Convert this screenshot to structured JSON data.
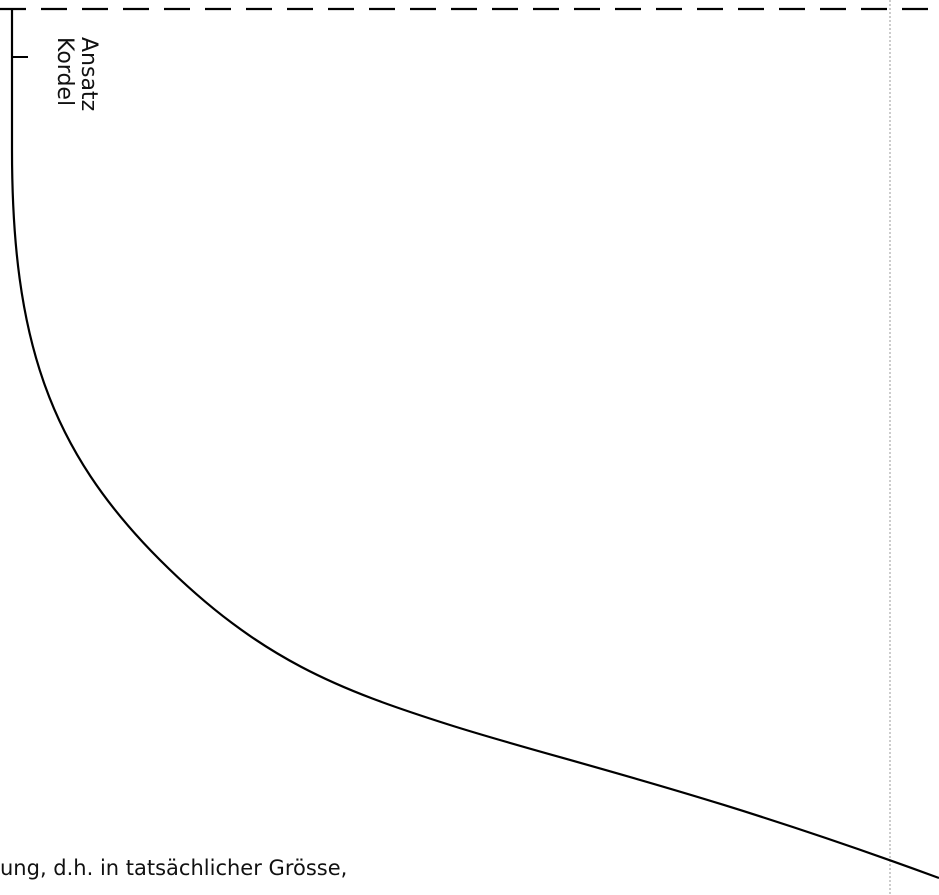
{
  "pattern": {
    "marker_label_line1": "Ansatz",
    "marker_label_line2": "Kordel",
    "footer_note": "ung, d.h. in tatsächlicher Grösse,",
    "line_color": "#000000",
    "page_edge_color": "#9a9a9a"
  }
}
